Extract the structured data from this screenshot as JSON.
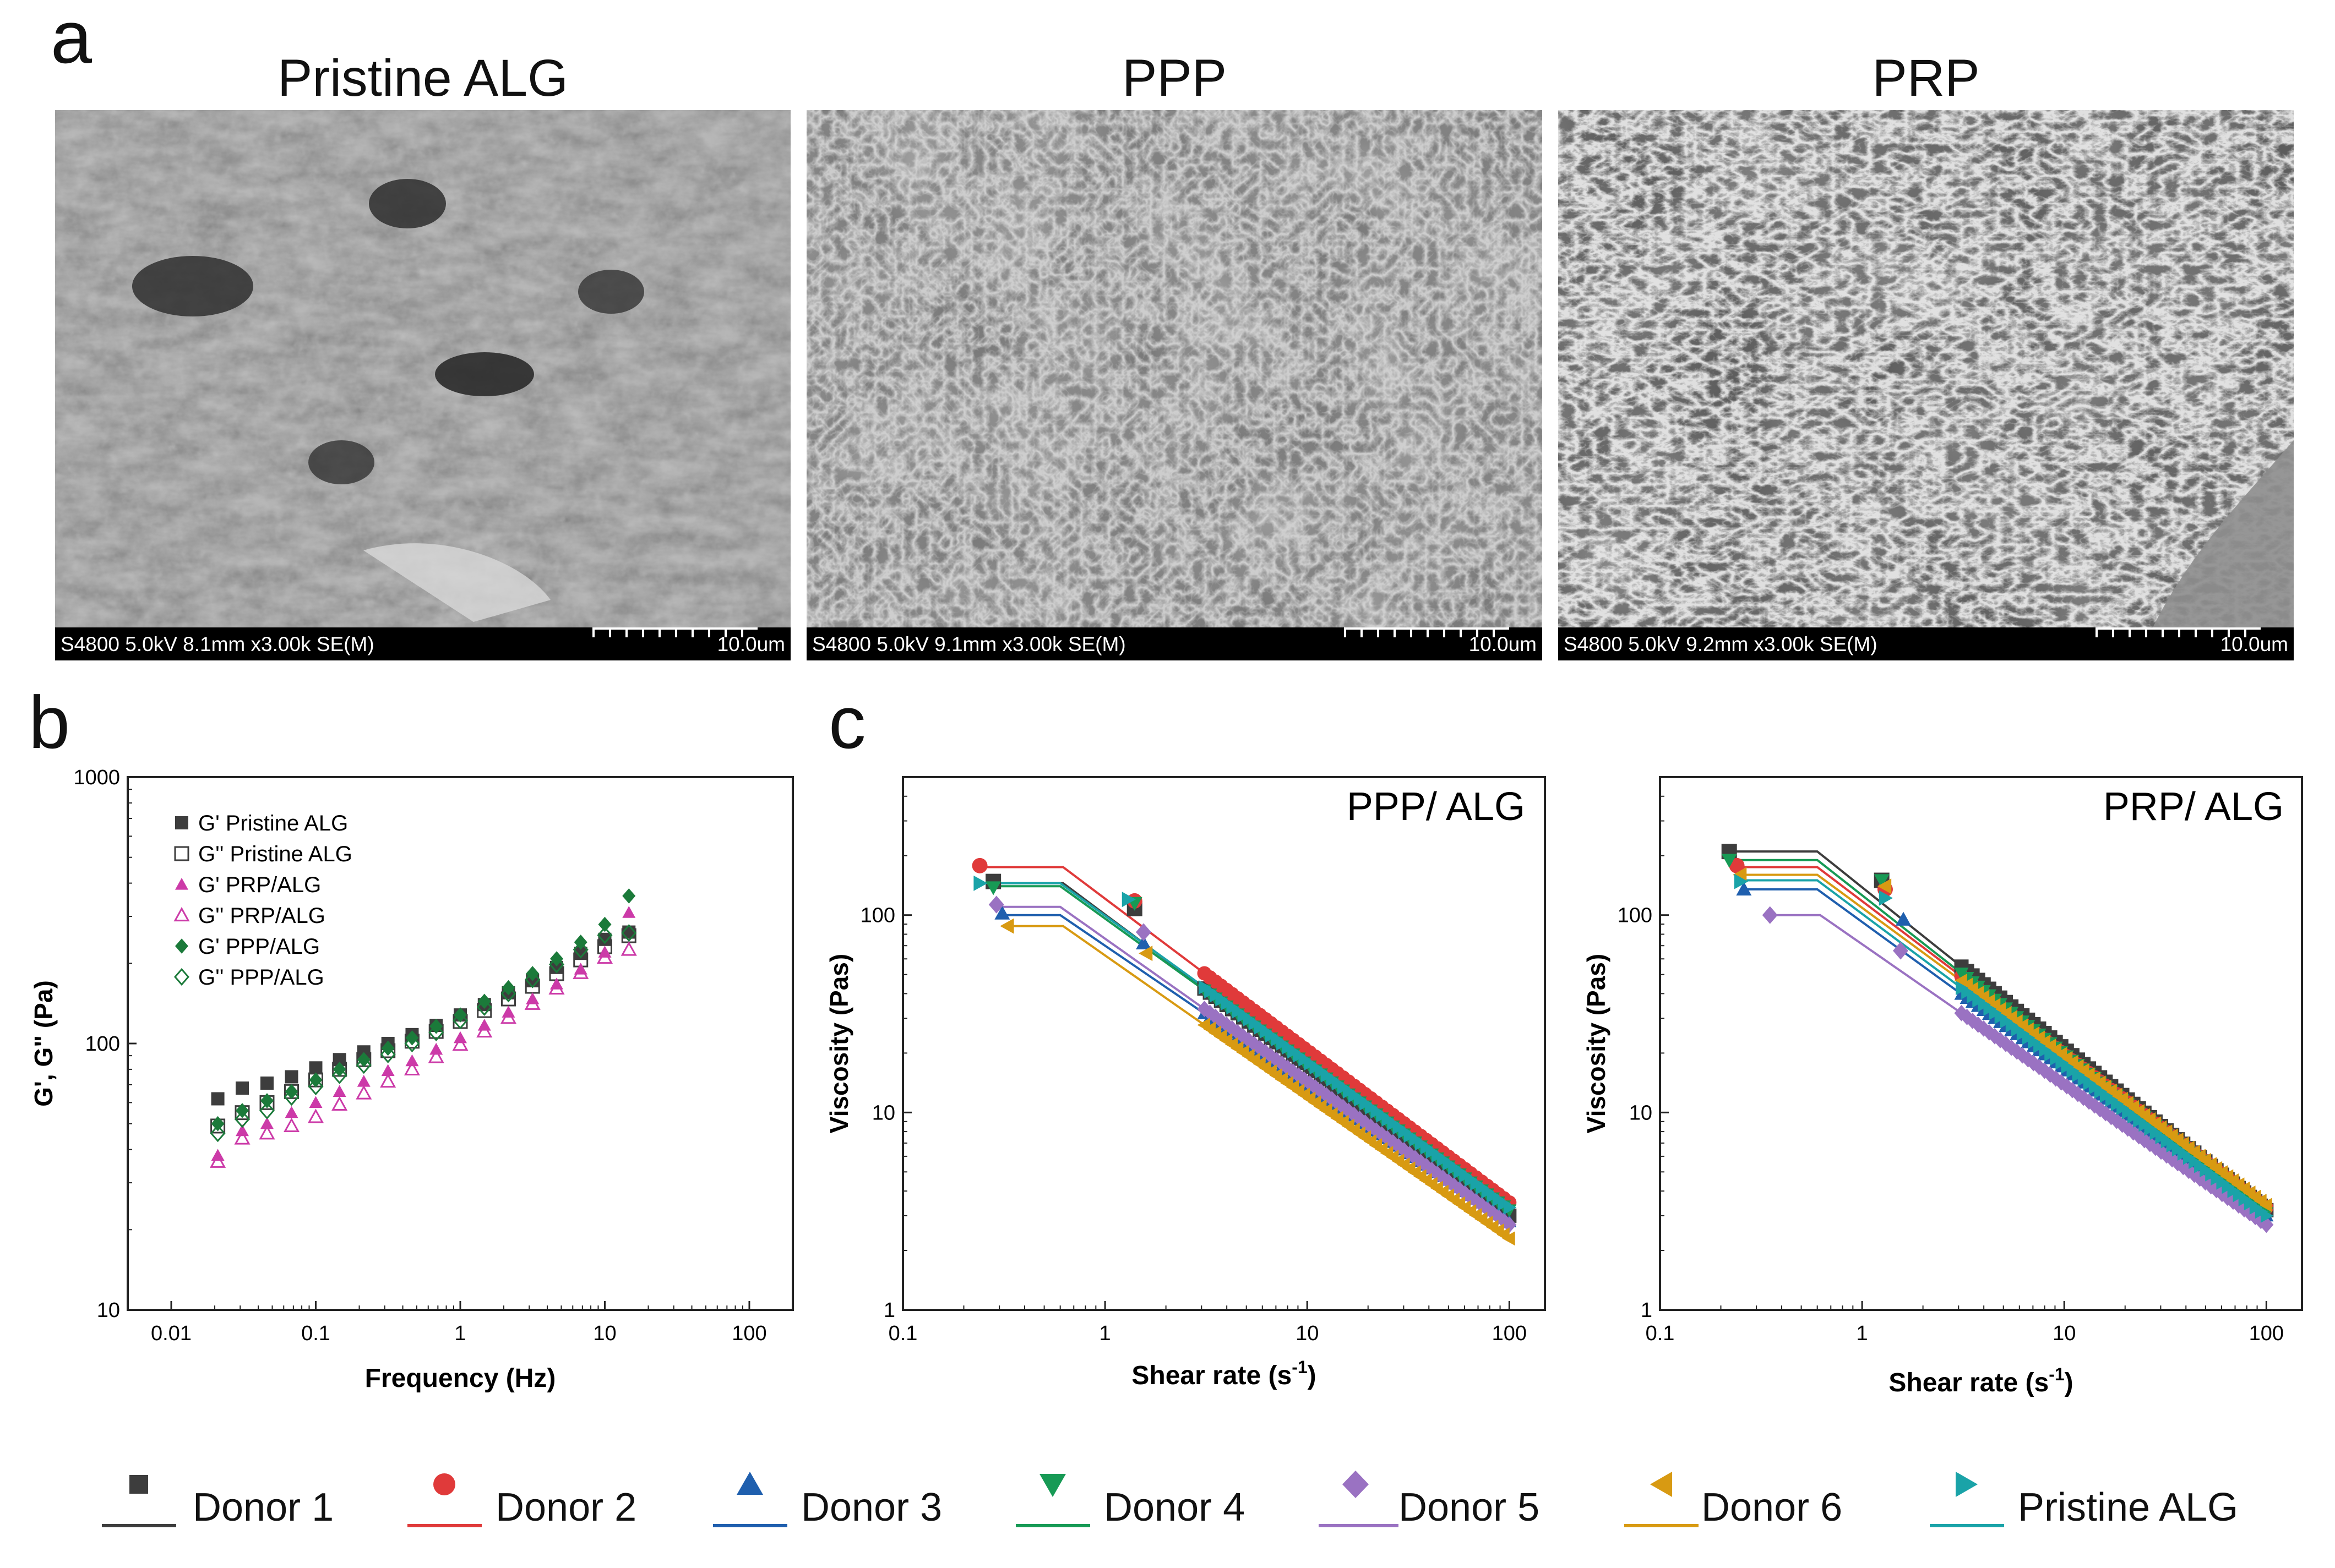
{
  "panels": {
    "a": "a",
    "b": "b",
    "c": "c"
  },
  "sem": [
    {
      "title": "Pristine ALG",
      "meta": "S4800 5.0kV 8.1mm x3.00k SE(M)",
      "scale": "10.0um"
    },
    {
      "title": "PPP",
      "meta": "S4800 5.0kV 9.1mm x3.00k SE(M)",
      "scale": "10.0um"
    },
    {
      "title": "PRP",
      "meta": "S4800 5.0kV 9.2mm x3.00k SE(M)",
      "scale": "10.0um"
    }
  ],
  "chart_b_xlabel": "Frequency (Hz)",
  "chart_b_ylabel": "G', G\" (Pa)",
  "chart_c1_xlabel": "Shear rate (s",
  "chart_c1_ylabel": "Viscosity (Pas)",
  "chart_c2_xlabel": "Shear rate (s",
  "chart_c2_ylabel": "Viscosity (Pas)",
  "sup_minus1": "-1",
  "legend_bottom": [
    "Donor 1",
    "Donor 2",
    "Donor 3",
    "Donor 4",
    "Donor 5",
    "Donor 6",
    "Pristine ALG"
  ],
  "colors": {
    "donor1": "#3d3d3d",
    "donor2": "#e03a3a",
    "donor3": "#1f5fae",
    "donor4": "#179a55",
    "donor5": "#9a72c2",
    "donor6": "#d89a12",
    "pristine": "#1aa3a8",
    "gp_pristine": "#3d3d3d",
    "gp_prp": "#cc3aa8",
    "gp_ppp": "#1b7a3a"
  },
  "chart_data": [
    {
      "type": "scatter",
      "panel": "b",
      "xlabel": "Frequency (Hz)",
      "ylabel": "G', G\" (Pa)",
      "xscale": "log",
      "yscale": "log",
      "xlim": [
        0.005,
        200
      ],
      "ylim": [
        10,
        1000
      ],
      "xticks": [
        "0.01",
        "0.1",
        "1",
        "10",
        "100"
      ],
      "yticks": [
        "10",
        "100",
        "1000"
      ],
      "legend_position": "top-left",
      "x": [
        0.021,
        0.031,
        0.046,
        0.068,
        0.1,
        0.146,
        0.215,
        0.316,
        0.464,
        0.681,
        1.0,
        1.468,
        2.154,
        3.162,
        4.642,
        6.813,
        10.0,
        14.68
      ],
      "series": [
        {
          "name": "G' Pristine ALG",
          "marker": "square-filled",
          "color": "#3d3d3d",
          "values": [
            62,
            68,
            71,
            75,
            81,
            87,
            93,
            100,
            108,
            117,
            128,
            140,
            155,
            172,
            193,
            218,
            246,
            262
          ]
        },
        {
          "name": "G'' Pristine ALG",
          "marker": "square-open",
          "color": "#3d3d3d",
          "values": [
            49,
            55,
            60,
            66,
            73,
            80,
            87,
            94,
            102,
            111,
            121,
            133,
            147,
            164,
            183,
            206,
            231,
            254
          ]
        },
        {
          "name": "G' PRP/ALG",
          "marker": "triangle-filled",
          "color": "#cc3aa8",
          "values": [
            38,
            47,
            50,
            55,
            60,
            66,
            72,
            79,
            86,
            95,
            105,
            117,
            131,
            147,
            167,
            190,
            220,
            310
          ]
        },
        {
          "name": "G'' PRP/ALG",
          "marker": "triangle-open",
          "color": "#cc3aa8",
          "values": [
            36,
            44,
            46,
            49,
            53,
            59,
            65,
            72,
            80,
            89,
            99,
            111,
            125,
            141,
            161,
            184,
            210,
            225
          ]
        },
        {
          "name": "G' PPP/ALG",
          "marker": "diamond-filled",
          "color": "#1b7a3a",
          "values": [
            50,
            56,
            61,
            66,
            73,
            80,
            87,
            96,
            105,
            116,
            128,
            144,
            162,
            183,
            208,
            240,
            280,
            358
          ]
        },
        {
          "name": "G'' PPP/ALG",
          "marker": "diamond-open",
          "color": "#1b7a3a",
          "values": [
            46,
            52,
            56,
            63,
            69,
            76,
            83,
            91,
            100,
            110,
            122,
            137,
            154,
            174,
            198,
            225,
            255,
            260
          ]
        }
      ]
    },
    {
      "type": "line",
      "panel": "c",
      "title": "PPP/ ALG",
      "xlabel": "Shear rate (s-1)",
      "ylabel": "Viscosity (Pas)",
      "xscale": "log",
      "yscale": "log",
      "xlim": [
        0.1,
        150
      ],
      "ylim": [
        1,
        500
      ],
      "xticks": [
        "0.1",
        "1",
        "10",
        "100"
      ],
      "yticks": [
        "1",
        "10",
        "100"
      ],
      "series": [
        {
          "name": "Donor 1",
          "marker": "square",
          "color": "#3d3d3d",
          "plateau": 145,
          "x_start": 0.28,
          "x_knee": 0.62,
          "end_value": 3.0,
          "first_points": [
            [
              0.28,
              148
            ],
            [
              1.4,
              108
            ]
          ]
        },
        {
          "name": "Donor 2",
          "marker": "circle",
          "color": "#e03a3a",
          "plateau": 175,
          "x_start": 0.24,
          "x_knee": 0.62,
          "end_value": 3.5,
          "first_points": [
            [
              0.24,
              178
            ],
            [
              1.4,
              118
            ]
          ]
        },
        {
          "name": "Donor 3",
          "marker": "triangle-up",
          "color": "#1f5fae",
          "plateau": 100,
          "x_start": 0.31,
          "x_knee": 0.6,
          "end_value": 2.8,
          "first_points": [
            [
              0.31,
              102
            ],
            [
              1.55,
              72
            ]
          ]
        },
        {
          "name": "Donor 4",
          "marker": "triangle-down",
          "color": "#179a55",
          "plateau": 140,
          "x_start": 0.28,
          "x_knee": 0.6,
          "end_value": 3.2,
          "first_points": [
            [
              0.28,
              138
            ],
            [
              1.4,
              115
            ]
          ]
        },
        {
          "name": "Donor 5",
          "marker": "diamond",
          "color": "#9a72c2",
          "plateau": 110,
          "x_start": 0.29,
          "x_knee": 0.6,
          "end_value": 2.7,
          "first_points": [
            [
              0.29,
              113
            ],
            [
              1.55,
              82
            ]
          ]
        },
        {
          "name": "Donor 6",
          "marker": "triangle-left",
          "color": "#d89a12",
          "plateau": 88,
          "x_start": 0.33,
          "x_knee": 0.62,
          "end_value": 2.3,
          "first_points": [
            [
              0.33,
              88
            ],
            [
              1.6,
              64
            ]
          ]
        },
        {
          "name": "Pristine ALG",
          "marker": "triangle-right",
          "color": "#1aa3a8",
          "plateau": 145,
          "x_start": 0.24,
          "x_knee": 0.6,
          "end_value": 3.3,
          "first_points": [
            [
              0.24,
              145
            ],
            [
              1.3,
              120
            ]
          ]
        }
      ]
    },
    {
      "type": "line",
      "panel": "c",
      "title": "PRP/ ALG",
      "xlabel": "Shear rate (s-1)",
      "ylabel": "Viscosity (Pas)",
      "xscale": "log",
      "yscale": "log",
      "xlim": [
        0.1,
        150
      ],
      "ylim": [
        1,
        500
      ],
      "xticks": [
        "0.1",
        "1",
        "10",
        "100"
      ],
      "yticks": [
        "1",
        "10",
        "100"
      ],
      "series": [
        {
          "name": "Donor 1",
          "marker": "square",
          "color": "#3d3d3d",
          "plateau": 210,
          "x_start": 0.22,
          "x_knee": 0.6,
          "end_value": 3.2,
          "first_points": [
            [
              0.22,
              210
            ],
            [
              1.25,
              150
            ]
          ]
        },
        {
          "name": "Donor 2",
          "marker": "circle",
          "color": "#e03a3a",
          "plateau": 175,
          "x_start": 0.24,
          "x_knee": 0.6,
          "end_value": 3.3,
          "first_points": [
            [
              0.24,
              178
            ],
            [
              1.3,
              135
            ]
          ]
        },
        {
          "name": "Donor 3",
          "marker": "triangle-up",
          "color": "#1f5fae",
          "plateau": 135,
          "x_start": 0.26,
          "x_knee": 0.6,
          "end_value": 3.0,
          "first_points": [
            [
              0.26,
              135
            ],
            [
              1.6,
              95
            ]
          ]
        },
        {
          "name": "Donor 4",
          "marker": "triangle-down",
          "color": "#179a55",
          "plateau": 190,
          "x_start": 0.22,
          "x_knee": 0.6,
          "end_value": 3.1,
          "first_points": [
            [
              0.22,
              190
            ],
            [
              1.25,
              150
            ]
          ]
        },
        {
          "name": "Donor 5",
          "marker": "diamond",
          "color": "#9a72c2",
          "plateau": 100,
          "x_start": 0.35,
          "x_knee": 0.62,
          "end_value": 2.7,
          "first_points": [
            [
              0.35,
              100
            ],
            [
              1.55,
              66
            ]
          ]
        },
        {
          "name": "Donor 6",
          "marker": "triangle-left",
          "color": "#d89a12",
          "plateau": 160,
          "x_start": 0.25,
          "x_knee": 0.6,
          "end_value": 3.4,
          "first_points": [
            [
              0.25,
              160
            ],
            [
              1.3,
              140
            ]
          ]
        },
        {
          "name": "Pristine ALG",
          "marker": "triangle-right",
          "color": "#1aa3a8",
          "plateau": 150,
          "x_start": 0.25,
          "x_knee": 0.6,
          "end_value": 3.0,
          "first_points": [
            [
              0.25,
              148
            ],
            [
              1.3,
              122
            ]
          ]
        }
      ]
    }
  ]
}
